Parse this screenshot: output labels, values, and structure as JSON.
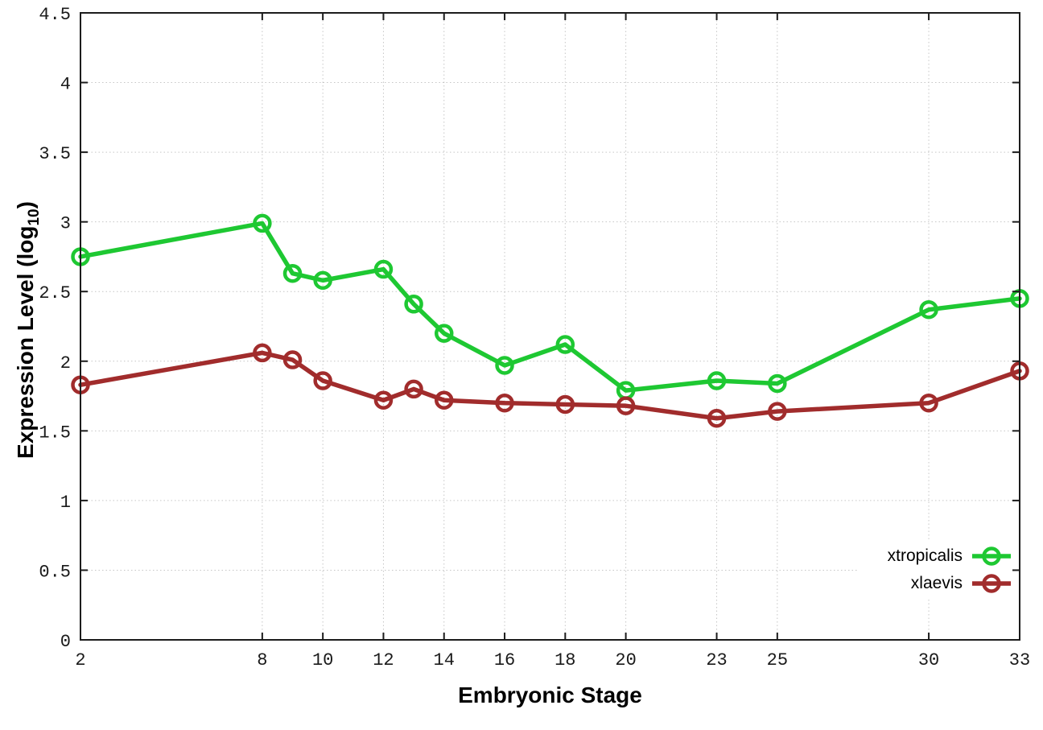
{
  "chart_data": {
    "type": "line",
    "x": [
      2,
      8,
      9,
      10,
      12,
      13,
      14,
      16,
      18,
      20,
      23,
      25,
      30,
      33
    ],
    "series": [
      {
        "name": "xtropicalis",
        "color": "#1ec832",
        "values": [
          2.75,
          2.99,
          2.63,
          2.58,
          2.66,
          2.41,
          2.2,
          1.97,
          2.12,
          1.79,
          1.86,
          1.84,
          2.37,
          2.45
        ]
      },
      {
        "name": "xlaevis",
        "color": "#a12c2c",
        "values": [
          1.83,
          2.06,
          2.01,
          1.86,
          1.72,
          1.8,
          1.72,
          1.7,
          1.69,
          1.68,
          1.59,
          1.64,
          1.7,
          1.93
        ]
      }
    ],
    "title": "",
    "xlabel": "Embryonic Stage",
    "ylabel": {
      "pre": "Expression Level (log",
      "sub": "10",
      "post": ")"
    },
    "xlim": [
      2,
      33
    ],
    "ylim": [
      0,
      4.5
    ],
    "x_ticks": [
      2,
      8,
      10,
      12,
      14,
      16,
      18,
      20,
      23,
      25,
      30,
      33
    ],
    "y_ticks": [
      0,
      0.5,
      1,
      1.5,
      2,
      2.5,
      3,
      3.5,
      4,
      4.5
    ],
    "y_tick_labels": [
      "0",
      "0.5",
      "1",
      "1.5",
      "2",
      "2.5",
      "3",
      "3.5",
      "4",
      "4.5"
    ],
    "grid": true,
    "grid_style": "dotted",
    "legend_position": "bottom-right",
    "background_color": "#ffffff",
    "border_color": "#1c1c1c"
  }
}
